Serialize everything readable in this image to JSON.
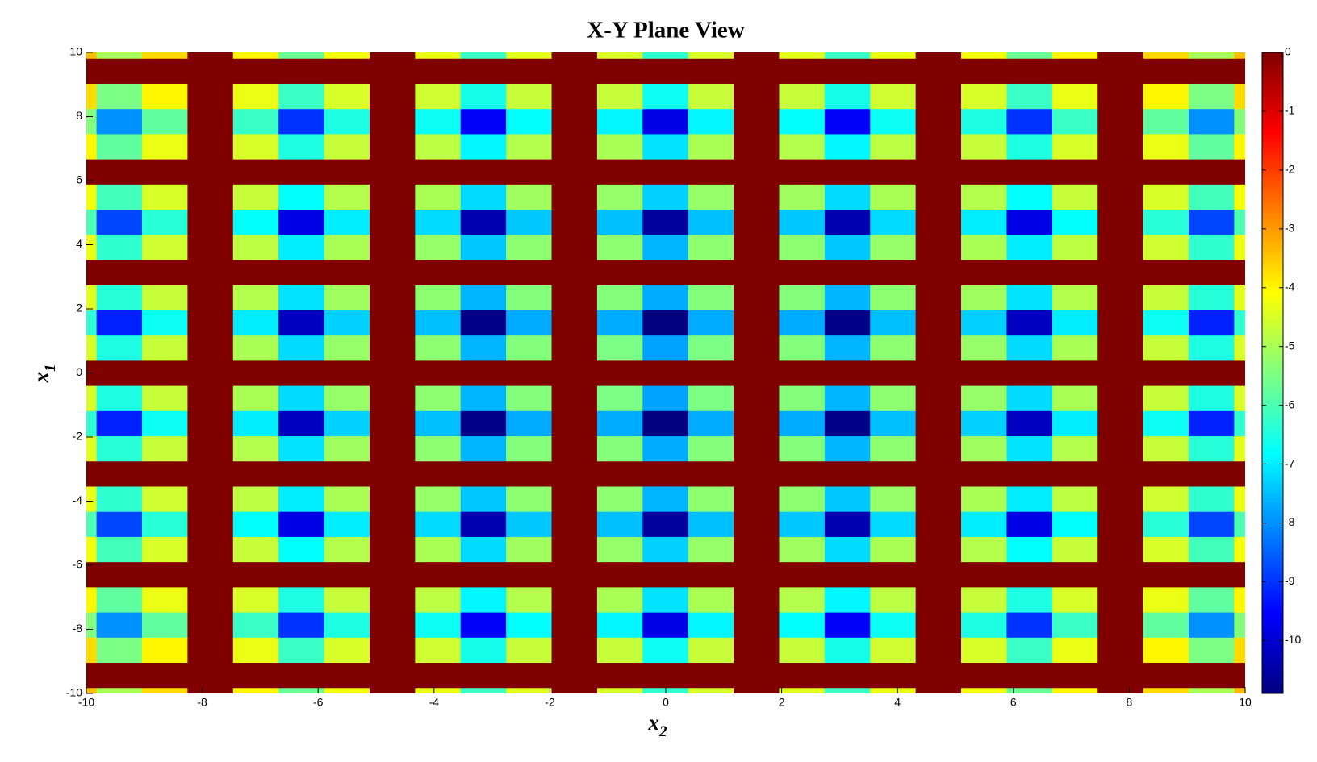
{
  "chart_data": {
    "type": "heatmap",
    "title": "X-Y Plane View",
    "xlabel": {
      "base": "x",
      "sub": "2"
    },
    "ylabel": {
      "base": "x",
      "sub": "1"
    },
    "colormap": "jet",
    "xlim": [
      -10,
      10
    ],
    "ylim": [
      -10,
      10
    ],
    "xticks": [
      -10,
      -8,
      -6,
      -4,
      -2,
      0,
      2,
      4,
      6,
      8,
      10
    ],
    "yticks": [
      -10,
      -8,
      -6,
      -4,
      -2,
      0,
      2,
      4,
      6,
      8,
      10
    ],
    "clim": [
      -10.9,
      0
    ],
    "cticks": [
      0,
      -1,
      -2,
      -3,
      -4,
      -5,
      -6,
      -7,
      -8,
      -9,
      -10
    ],
    "x": [
      -10.21,
      -9.425,
      -8.639,
      -7.854,
      -7.069,
      -6.283,
      -5.498,
      -4.712,
      -3.927,
      -3.142,
      -2.356,
      -1.571,
      -0.785,
      0,
      0.785,
      1.571,
      2.356,
      3.142,
      3.927,
      4.712,
      5.498,
      6.283,
      7.069,
      7.854,
      8.639,
      9.425,
      10.21
    ],
    "y": [
      -10.21,
      -9.425,
      -8.639,
      -7.854,
      -7.069,
      -6.283,
      -5.498,
      -4.712,
      -3.927,
      -3.142,
      -2.356,
      -1.571,
      -0.785,
      0,
      0.785,
      1.571,
      2.356,
      3.142,
      3.927,
      4.712,
      5.498,
      6.283,
      7.069,
      7.854,
      8.639,
      9.425,
      10.21
    ],
    "z": [
      [
        -3.4,
        -5.0,
        -3.7,
        0,
        -4.0,
        -5.7,
        -4.2,
        0,
        -4.3,
        -6.2,
        -4.4,
        0,
        -4.5,
        -6.3,
        -4.5,
        0,
        -4.4,
        -6.2,
        -4.3,
        0,
        -4.2,
        -5.7,
        -4.0,
        0,
        -3.7,
        -5.0,
        -3.4
      ],
      [
        0,
        0,
        0,
        0,
        0,
        0,
        0,
        0,
        0,
        0,
        0,
        0,
        0,
        0,
        0,
        0,
        0,
        0,
        0,
        0,
        0,
        0,
        0,
        0,
        0,
        0,
        0
      ],
      [
        -3.7,
        -5.5,
        -4.0,
        0,
        -4.3,
        -6.2,
        -4.5,
        0,
        -4.6,
        -6.6,
        -4.7,
        0,
        -4.7,
        -6.7,
        -4.7,
        0,
        -4.7,
        -6.6,
        -4.6,
        0,
        -4.5,
        -6.2,
        -4.3,
        0,
        -4.0,
        -5.5,
        -3.7
      ],
      [
        -5.4,
        -8.0,
        -5.8,
        0,
        -6.2,
        -9.0,
        -6.5,
        0,
        -6.7,
        -9.6,
        -6.8,
        0,
        -6.9,
        -9.8,
        -6.9,
        0,
        -6.8,
        -9.6,
        -6.7,
        0,
        -6.5,
        -9.0,
        -6.2,
        0,
        -5.8,
        -8.0,
        -5.4
      ],
      [
        -4.0,
        -5.8,
        -4.3,
        0,
        -4.5,
        -6.5,
        -4.7,
        0,
        -4.8,
        -6.9,
        -4.9,
        0,
        -5.0,
        -7.1,
        -5.0,
        0,
        -4.9,
        -6.9,
        -4.8,
        0,
        -4.7,
        -6.5,
        -4.5,
        0,
        -4.3,
        -5.8,
        -4.0
      ],
      [
        0,
        0,
        0,
        0,
        0,
        0,
        0,
        0,
        0,
        0,
        0,
        0,
        0,
        0,
        0,
        0,
        0,
        0,
        0,
        0,
        0,
        0,
        0,
        0,
        0,
        0,
        0
      ],
      [
        -4.2,
        -6.1,
        -4.5,
        0,
        -4.7,
        -6.8,
        -4.9,
        0,
        -5.0,
        -7.2,
        -5.1,
        0,
        -5.2,
        -7.3,
        -5.2,
        0,
        -5.1,
        -7.2,
        -5.0,
        0,
        -4.9,
        -6.8,
        -4.7,
        0,
        -4.5,
        -6.1,
        -4.2
      ],
      [
        -6.0,
        -8.8,
        -6.4,
        0,
        -6.8,
        -9.8,
        -7.0,
        0,
        -7.2,
        -10.4,
        -7.4,
        0,
        -7.5,
        -10.6,
        -7.5,
        0,
        -7.4,
        -10.4,
        -7.2,
        0,
        -7.0,
        -9.8,
        -6.8,
        0,
        -6.4,
        -8.8,
        -6.0
      ],
      [
        -4.3,
        -6.3,
        -4.6,
        0,
        -4.8,
        -7.0,
        -5.0,
        0,
        -5.2,
        -7.4,
        -5.3,
        0,
        -5.3,
        -7.6,
        -5.3,
        0,
        -5.3,
        -7.4,
        -5.2,
        0,
        -5.0,
        -7.0,
        -4.8,
        0,
        -4.6,
        -6.3,
        -4.3
      ],
      [
        0,
        0,
        0,
        0,
        0,
        0,
        0,
        0,
        0,
        0,
        0,
        0,
        0,
        0,
        0,
        0,
        0,
        0,
        0,
        0,
        0,
        0,
        0,
        0,
        0,
        0,
        0
      ],
      [
        -4.4,
        -6.4,
        -4.7,
        0,
        -4.9,
        -7.1,
        -5.1,
        0,
        -5.3,
        -7.6,
        -5.4,
        0,
        -5.4,
        -7.7,
        -5.4,
        0,
        -5.4,
        -7.6,
        -5.3,
        0,
        -5.1,
        -7.1,
        -4.9,
        0,
        -4.7,
        -6.4,
        -4.4
      ],
      [
        -6.3,
        -9.2,
        -6.7,
        0,
        -7.0,
        -10.2,
        -7.3,
        0,
        -7.5,
        -10.8,
        -7.7,
        0,
        -7.7,
        -11,
        -7.7,
        0,
        -7.7,
        -10.8,
        -7.5,
        0,
        -7.3,
        -10.2,
        -7.0,
        0,
        -6.7,
        -9.2,
        -6.3
      ],
      [
        -4.5,
        -6.5,
        -4.7,
        0,
        -5.0,
        -7.2,
        -5.2,
        0,
        -5.3,
        -7.6,
        -5.4,
        0,
        -5.5,
        -7.8,
        -5.5,
        0,
        -5.4,
        -7.6,
        -5.3,
        0,
        -5.2,
        -7.2,
        -5.0,
        0,
        -4.7,
        -6.5,
        -4.5
      ],
      [
        0,
        0,
        0,
        0,
        0,
        0,
        0,
        0,
        0,
        0,
        0,
        0,
        0,
        0,
        0,
        0,
        0,
        0,
        0,
        0,
        0,
        0,
        0,
        0,
        0,
        0,
        0
      ],
      [
        -4.5,
        -6.5,
        -4.7,
        0,
        -5.0,
        -7.2,
        -5.2,
        0,
        -5.3,
        -7.6,
        -5.4,
        0,
        -5.5,
        -7.8,
        -5.5,
        0,
        -5.4,
        -7.6,
        -5.3,
        0,
        -5.2,
        -7.2,
        -5.0,
        0,
        -4.7,
        -6.5,
        -4.5
      ],
      [
        -6.3,
        -9.2,
        -6.7,
        0,
        -7.0,
        -10.2,
        -7.3,
        0,
        -7.5,
        -10.8,
        -7.7,
        0,
        -7.7,
        -11,
        -7.7,
        0,
        -7.7,
        -10.8,
        -7.5,
        0,
        -7.3,
        -10.2,
        -7.0,
        0,
        -6.7,
        -9.2,
        -6.3
      ],
      [
        -4.4,
        -6.4,
        -4.7,
        0,
        -4.9,
        -7.1,
        -5.1,
        0,
        -5.3,
        -7.6,
        -5.4,
        0,
        -5.4,
        -7.7,
        -5.4,
        0,
        -5.4,
        -7.6,
        -5.3,
        0,
        -5.1,
        -7.1,
        -4.9,
        0,
        -4.7,
        -6.4,
        -4.4
      ],
      [
        0,
        0,
        0,
        0,
        0,
        0,
        0,
        0,
        0,
        0,
        0,
        0,
        0,
        0,
        0,
        0,
        0,
        0,
        0,
        0,
        0,
        0,
        0,
        0,
        0,
        0,
        0
      ],
      [
        -4.3,
        -6.3,
        -4.6,
        0,
        -4.8,
        -7.0,
        -5.0,
        0,
        -5.2,
        -7.4,
        -5.3,
        0,
        -5.3,
        -7.6,
        -5.3,
        0,
        -5.3,
        -7.4,
        -5.2,
        0,
        -5.0,
        -7.0,
        -4.8,
        0,
        -4.6,
        -6.3,
        -4.3
      ],
      [
        -6.0,
        -8.8,
        -6.4,
        0,
        -6.8,
        -9.8,
        -7.0,
        0,
        -7.2,
        -10.4,
        -7.4,
        0,
        -7.5,
        -10.6,
        -7.5,
        0,
        -7.4,
        -10.4,
        -7.2,
        0,
        -7.0,
        -9.8,
        -6.8,
        0,
        -6.4,
        -8.8,
        -6.0
      ],
      [
        -4.2,
        -6.1,
        -4.5,
        0,
        -4.7,
        -6.8,
        -4.9,
        0,
        -5.0,
        -7.2,
        -5.1,
        0,
        -5.2,
        -7.3,
        -5.2,
        0,
        -5.1,
        -7.2,
        -5.0,
        0,
        -4.9,
        -6.8,
        -4.7,
        0,
        -4.5,
        -6.1,
        -4.2
      ],
      [
        0,
        0,
        0,
        0,
        0,
        0,
        0,
        0,
        0,
        0,
        0,
        0,
        0,
        0,
        0,
        0,
        0,
        0,
        0,
        0,
        0,
        0,
        0,
        0,
        0,
        0,
        0
      ],
      [
        -4.0,
        -5.8,
        -4.3,
        0,
        -4.5,
        -6.5,
        -4.7,
        0,
        -4.8,
        -6.9,
        -4.9,
        0,
        -5.0,
        -7.1,
        -5.0,
        0,
        -4.9,
        -6.9,
        -4.8,
        0,
        -4.7,
        -6.5,
        -4.5,
        0,
        -4.3,
        -5.8,
        -4.0
      ],
      [
        -5.4,
        -8.0,
        -5.8,
        0,
        -6.2,
        -9.0,
        -6.5,
        0,
        -6.7,
        -9.6,
        -6.8,
        0,
        -6.9,
        -9.8,
        -6.9,
        0,
        -6.8,
        -9.6,
        -6.7,
        0,
        -6.5,
        -9.0,
        -6.2,
        0,
        -5.8,
        -8.0,
        -5.4
      ],
      [
        -3.7,
        -5.5,
        -4.0,
        0,
        -4.3,
        -6.2,
        -4.5,
        0,
        -4.6,
        -6.6,
        -4.7,
        0,
        -4.7,
        -6.7,
        -4.7,
        0,
        -4.7,
        -6.6,
        -4.6,
        0,
        -4.5,
        -6.2,
        -4.3,
        0,
        -4.0,
        -5.5,
        -3.7
      ],
      [
        0,
        0,
        0,
        0,
        0,
        0,
        0,
        0,
        0,
        0,
        0,
        0,
        0,
        0,
        0,
        0,
        0,
        0,
        0,
        0,
        0,
        0,
        0,
        0,
        0,
        0,
        0
      ],
      [
        -3.4,
        -5.0,
        -3.7,
        0,
        -4.0,
        -5.7,
        -4.2,
        0,
        -4.3,
        -6.2,
        -4.4,
        0,
        -4.5,
        -6.3,
        -4.5,
        0,
        -4.4,
        -6.2,
        -4.3,
        0,
        -4.2,
        -5.7,
        -4.0,
        0,
        -3.7,
        -5.0,
        -3.4
      ]
    ]
  }
}
